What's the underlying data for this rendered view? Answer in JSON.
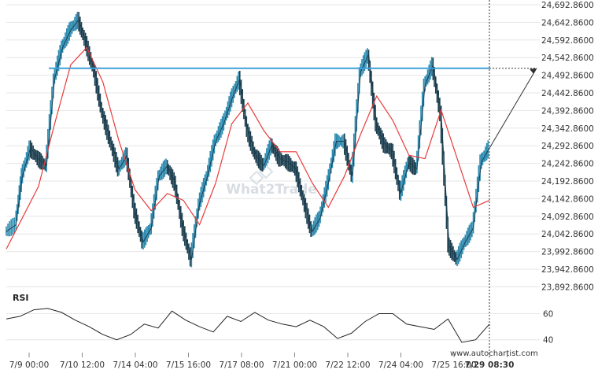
{
  "chart_data": [
    {
      "type": "candlestick",
      "chart_label": "",
      "y_axis": {
        "min": 23880,
        "max": 24692.86,
        "ticks": [
          "24,692.8600",
          "24,642.8600",
          "24,592.8600",
          "24,542.8600",
          "24,492.8600",
          "24,442.8600",
          "24,392.8600",
          "24,342.8600",
          "24,292.8600",
          "24,242.8600",
          "24,192.8600",
          "24,142.8600",
          "24,092.8600",
          "24,042.8600",
          "23,992.8600",
          "23,942.8600",
          "23,892.8600"
        ]
      },
      "x_axis": {
        "ticks": [
          "7/9 00:00",
          "7/10 12:00",
          "7/14 04:00",
          "7/15 16:00",
          "7/17 08:00",
          "7/21 00:00",
          "7/22 12:00",
          "7/24 04:00",
          "7/25 16:00",
          "7/29 08:30"
        ]
      },
      "resistance_level": 24510,
      "projected_target": 24510,
      "current_time_label": "7/29 08:30",
      "price_points": [
        {
          "x": 0.0,
          "y": 24040
        },
        {
          "x": 0.6,
          "y": 24060
        },
        {
          "x": 1.0,
          "y": 24200
        },
        {
          "x": 1.5,
          "y": 24280
        },
        {
          "x": 2.0,
          "y": 24250
        },
        {
          "x": 2.5,
          "y": 24230
        },
        {
          "x": 3.0,
          "y": 24480
        },
        {
          "x": 3.5,
          "y": 24570
        },
        {
          "x": 4.0,
          "y": 24620
        },
        {
          "x": 4.5,
          "y": 24650
        },
        {
          "x": 5.0,
          "y": 24580
        },
        {
          "x": 5.5,
          "y": 24500
        },
        {
          "x": 6.0,
          "y": 24380
        },
        {
          "x": 6.5,
          "y": 24300
        },
        {
          "x": 7.0,
          "y": 24220
        },
        {
          "x": 7.5,
          "y": 24260
        },
        {
          "x": 8.0,
          "y": 24100
        },
        {
          "x": 8.5,
          "y": 24010
        },
        {
          "x": 9.0,
          "y": 24050
        },
        {
          "x": 9.5,
          "y": 24200
        },
        {
          "x": 10.0,
          "y": 24230
        },
        {
          "x": 10.5,
          "y": 24180
        },
        {
          "x": 11.0,
          "y": 24050
        },
        {
          "x": 11.5,
          "y": 23960
        },
        {
          "x": 12.0,
          "y": 24120
        },
        {
          "x": 12.5,
          "y": 24200
        },
        {
          "x": 13.0,
          "y": 24300
        },
        {
          "x": 13.5,
          "y": 24350
        },
        {
          "x": 14.0,
          "y": 24420
        },
        {
          "x": 14.5,
          "y": 24480
        },
        {
          "x": 15.0,
          "y": 24330
        },
        {
          "x": 15.5,
          "y": 24260
        },
        {
          "x": 16.0,
          "y": 24230
        },
        {
          "x": 16.5,
          "y": 24290
        },
        {
          "x": 17.0,
          "y": 24250
        },
        {
          "x": 17.5,
          "y": 24240
        },
        {
          "x": 18.0,
          "y": 24220
        },
        {
          "x": 18.5,
          "y": 24130
        },
        {
          "x": 19.0,
          "y": 24040
        },
        {
          "x": 19.5,
          "y": 24080
        },
        {
          "x": 20.0,
          "y": 24180
        },
        {
          "x": 20.5,
          "y": 24300
        },
        {
          "x": 21.0,
          "y": 24300
        },
        {
          "x": 21.5,
          "y": 24200
        },
        {
          "x": 22.0,
          "y": 24500
        },
        {
          "x": 22.5,
          "y": 24550
        },
        {
          "x": 23.0,
          "y": 24350
        },
        {
          "x": 23.5,
          "y": 24290
        },
        {
          "x": 24.0,
          "y": 24270
        },
        {
          "x": 24.5,
          "y": 24150
        },
        {
          "x": 25.0,
          "y": 24240
        },
        {
          "x": 25.5,
          "y": 24220
        },
        {
          "x": 26.0,
          "y": 24460
        },
        {
          "x": 26.5,
          "y": 24520
        },
        {
          "x": 27.0,
          "y": 24380
        },
        {
          "x": 27.5,
          "y": 24000
        },
        {
          "x": 28.0,
          "y": 23960
        },
        {
          "x": 28.5,
          "y": 24010
        },
        {
          "x": 29.0,
          "y": 24050
        },
        {
          "x": 29.5,
          "y": 24240
        },
        {
          "x": 30.0,
          "y": 24280
        }
      ],
      "moving_average": [
        {
          "x": 0.0,
          "y": 23990
        },
        {
          "x": 1.0,
          "y": 24080
        },
        {
          "x": 2.0,
          "y": 24170
        },
        {
          "x": 3.0,
          "y": 24350
        },
        {
          "x": 4.0,
          "y": 24520
        },
        {
          "x": 5.0,
          "y": 24570
        },
        {
          "x": 6.0,
          "y": 24470
        },
        {
          "x": 7.0,
          "y": 24300
        },
        {
          "x": 8.0,
          "y": 24160
        },
        {
          "x": 9.0,
          "y": 24100
        },
        {
          "x": 10.0,
          "y": 24150
        },
        {
          "x": 11.0,
          "y": 24130
        },
        {
          "x": 12.0,
          "y": 24060
        },
        {
          "x": 13.0,
          "y": 24180
        },
        {
          "x": 14.0,
          "y": 24350
        },
        {
          "x": 15.0,
          "y": 24410
        },
        {
          "x": 16.0,
          "y": 24330
        },
        {
          "x": 17.0,
          "y": 24270
        },
        {
          "x": 18.0,
          "y": 24270
        },
        {
          "x": 19.0,
          "y": 24180
        },
        {
          "x": 20.0,
          "y": 24110
        },
        {
          "x": 21.0,
          "y": 24200
        },
        {
          "x": 22.0,
          "y": 24320
        },
        {
          "x": 23.0,
          "y": 24430
        },
        {
          "x": 24.0,
          "y": 24360
        },
        {
          "x": 25.0,
          "y": 24260
        },
        {
          "x": 26.0,
          "y": 24250
        },
        {
          "x": 27.0,
          "y": 24390
        },
        {
          "x": 28.0,
          "y": 24250
        },
        {
          "x": 29.0,
          "y": 24110
        },
        {
          "x": 30.0,
          "y": 24130
        }
      ]
    },
    {
      "type": "line",
      "label": "RSI",
      "y_axis": {
        "min": 32,
        "max": 76,
        "ticks": [
          "60",
          "40"
        ]
      },
      "values": [
        {
          "x": 0,
          "y": 56
        },
        {
          "x": 1,
          "y": 58
        },
        {
          "x": 2,
          "y": 63
        },
        {
          "x": 3,
          "y": 64
        },
        {
          "x": 4,
          "y": 61
        },
        {
          "x": 5,
          "y": 55
        },
        {
          "x": 6,
          "y": 50
        },
        {
          "x": 7,
          "y": 44
        },
        {
          "x": 8,
          "y": 40
        },
        {
          "x": 9,
          "y": 44
        },
        {
          "x": 10,
          "y": 52
        },
        {
          "x": 11,
          "y": 49
        },
        {
          "x": 12,
          "y": 62
        },
        {
          "x": 13,
          "y": 55
        },
        {
          "x": 14,
          "y": 50
        },
        {
          "x": 15,
          "y": 46
        },
        {
          "x": 16,
          "y": 58
        },
        {
          "x": 17,
          "y": 54
        },
        {
          "x": 18,
          "y": 61
        },
        {
          "x": 19,
          "y": 55
        },
        {
          "x": 20,
          "y": 52
        },
        {
          "x": 21,
          "y": 50
        },
        {
          "x": 22,
          "y": 55
        },
        {
          "x": 23,
          "y": 50
        },
        {
          "x": 24,
          "y": 41
        },
        {
          "x": 25,
          "y": 45
        },
        {
          "x": 26,
          "y": 54
        },
        {
          "x": 27,
          "y": 60
        },
        {
          "x": 28,
          "y": 60
        },
        {
          "x": 29,
          "y": 52
        },
        {
          "x": 30,
          "y": 50
        },
        {
          "x": 31,
          "y": 48
        },
        {
          "x": 32,
          "y": 56
        },
        {
          "x": 33,
          "y": 38
        },
        {
          "x": 34,
          "y": 40
        },
        {
          "x": 35,
          "y": 52
        }
      ]
    }
  ],
  "ui": {
    "watermark": "What2Trade",
    "credit": "www.autochartist.com",
    "colors": {
      "price": "#1b3e4f",
      "price_up": "#2b8ab0",
      "moving_average": "#e83a3a",
      "resistance": "#3fa0d8",
      "rsi": "#222222",
      "grid": "#e6e6e6",
      "axis_text": "#333333"
    }
  }
}
